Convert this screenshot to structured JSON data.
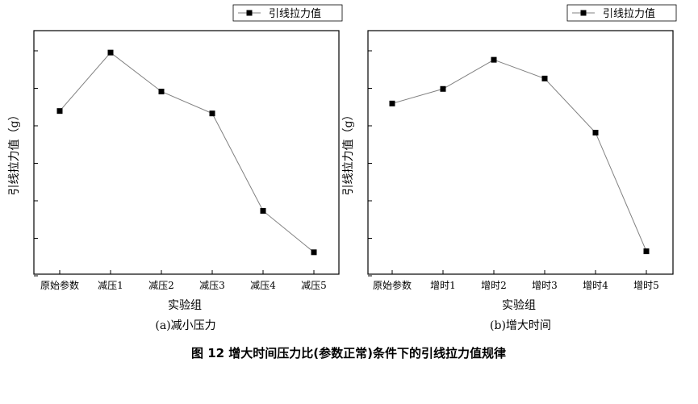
{
  "figure": {
    "caption": "图 12  增大时间压力比(参数正常)条件下的引线拉力值规律"
  },
  "chart_data": [
    {
      "type": "line",
      "subcaption": "(a)减小压力",
      "xlabel": "实验组",
      "ylabel": "引线拉力值（g）",
      "categories": [
        "原始参数",
        "减压1",
        "减压2",
        "减压3",
        "减压4",
        "减压5"
      ],
      "series": [
        {
          "name": "引线拉力值",
          "values": [
            6.2,
            8.6,
            7.0,
            6.1,
            2.1,
            0.4
          ]
        }
      ],
      "ylim": [
        -0.5,
        9.5
      ],
      "y_tick_labels_shown": false,
      "grid": false,
      "legend": "top-right",
      "marker": "square",
      "colors": {
        "line": "#808080",
        "marker": "#000000"
      }
    },
    {
      "type": "line",
      "subcaption": "(b)增大时间",
      "xlabel": "实验组",
      "ylabel": "引线拉力值（g）",
      "categories": [
        "原始参数",
        "增时1",
        "增时2",
        "增时3",
        "增时4",
        "增时5"
      ],
      "series": [
        {
          "name": "引线拉力值",
          "values": [
            6.2,
            6.9,
            8.3,
            7.4,
            4.8,
            -0.9
          ]
        }
      ],
      "ylim": [
        -2.0,
        9.7
      ],
      "y_tick_labels_shown": false,
      "grid": false,
      "legend": "top-right",
      "marker": "square",
      "colors": {
        "line": "#808080",
        "marker": "#000000"
      }
    }
  ]
}
